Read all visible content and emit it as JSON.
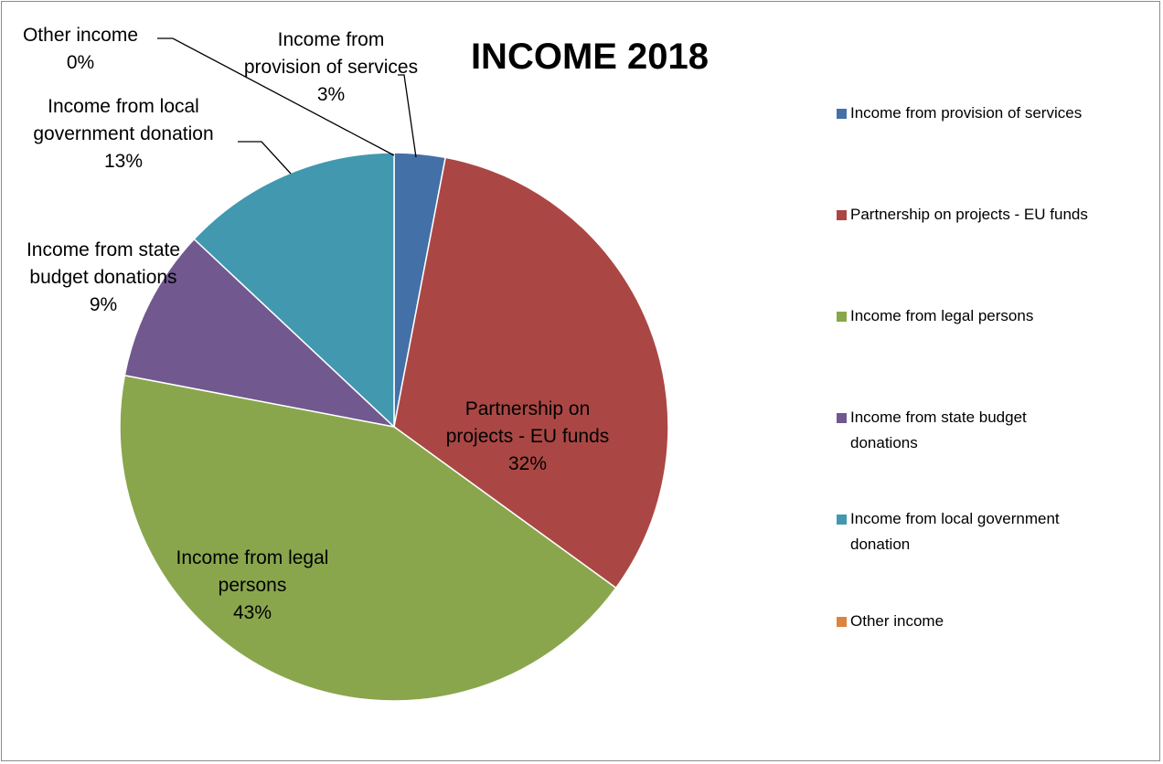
{
  "chart_data": {
    "type": "pie",
    "title": "INCOME 2018",
    "legend_position": "right",
    "slices": [
      {
        "name": "Income from provision of services",
        "value": 3,
        "label": "3%",
        "color": "#4470A8"
      },
      {
        "name": "Partnership on projects - EU funds",
        "value": 32,
        "label": "32%",
        "color": "#AA4744"
      },
      {
        "name": "Income from legal persons",
        "value": 43,
        "label": "43%",
        "color": "#89A64D"
      },
      {
        "name": "Income from state budget donations",
        "value": 9,
        "label": "9%",
        "color": "#71588F"
      },
      {
        "name": "Income from local government donation",
        "value": 13,
        "label": "13%",
        "color": "#4198AF"
      },
      {
        "name": "Other income",
        "value": 0,
        "label": "0%",
        "color": "#DB843D"
      }
    ],
    "data_labels": [
      {
        "lines": [
          "Income from",
          "provision of services",
          "3%"
        ]
      },
      {
        "lines": [
          "Partnership on",
          "projects - EU funds",
          "32%"
        ]
      },
      {
        "lines": [
          "Income from legal",
          "persons",
          "43%"
        ]
      },
      {
        "lines": [
          "Income from state",
          "budget donations",
          "9%"
        ]
      },
      {
        "lines": [
          "Income from local",
          "government donation",
          "13%"
        ]
      },
      {
        "lines": [
          "Other income",
          "0%"
        ]
      }
    ],
    "legend": [
      {
        "lines": [
          "Income from provision of services"
        ]
      },
      {
        "lines": [
          "Partnership on projects - EU funds"
        ]
      },
      {
        "lines": [
          "Income from legal persons"
        ]
      },
      {
        "lines": [
          "Income from state budget",
          "donations"
        ]
      },
      {
        "lines": [
          "Income from local government",
          "donation"
        ]
      },
      {
        "lines": [
          "Other income"
        ]
      }
    ]
  }
}
